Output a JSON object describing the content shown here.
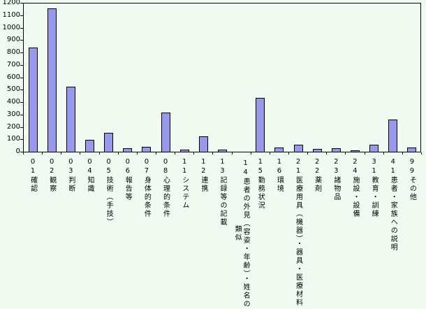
{
  "chart_data": {
    "type": "bar",
    "title": "",
    "xlabel": "",
    "ylabel": "",
    "categories": [
      "01確認",
      "02観察",
      "03判断",
      "04知識",
      "05技術（手技）",
      "06報告等",
      "07身体的条件",
      "08心理的条件",
      "11システム",
      "12連携",
      "13記録等の記載",
      "14患者の外見（容姿・年齢）・姓名の類似",
      "15勤務状況",
      "16環境",
      "21医療用具（機器）・器具・医療材料",
      "22薬剤",
      "23諸物品",
      "24施設・設備",
      "31教育・訓練",
      "41患者・家族への説明",
      "99その他"
    ],
    "values": [
      840,
      1155,
      520,
      90,
      145,
      20,
      35,
      310,
      10,
      120,
      12,
      0,
      430,
      30,
      50,
      15,
      20,
      5,
      50,
      255,
      30
    ],
    "ylim": [
      0,
      1200
    ],
    "ytick_step": 100,
    "yticks": [
      0,
      100,
      200,
      300,
      400,
      500,
      600,
      700,
      800,
      900,
      1000,
      1100,
      1200
    ],
    "grid": false,
    "legend": false,
    "colors": {
      "bar_fill": "#9999ec",
      "bar_border": "#000000",
      "background": "#f0faf0",
      "axis": "#000000",
      "text": "#000000"
    }
  }
}
